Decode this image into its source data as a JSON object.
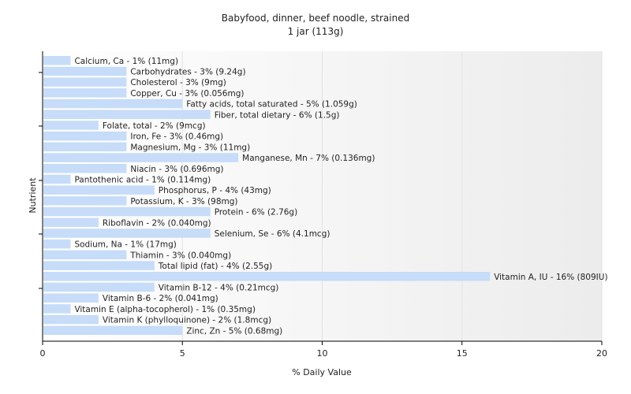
{
  "chart_data": {
    "type": "bar",
    "orientation": "horizontal",
    "title": "Babyfood, dinner, beef noodle, strained",
    "subtitle": "1 jar (113g)",
    "xlabel": "% Daily Value",
    "ylabel": "Nutrient",
    "xlim": [
      0,
      20
    ],
    "xticks": [
      0,
      5,
      10,
      15,
      20
    ],
    "grid": true,
    "bar_color": "#c6dcf8",
    "categories": [
      "Calcium, Ca",
      "Carbohydrates",
      "Cholesterol",
      "Copper, Cu",
      "Fatty acids, total saturated",
      "Fiber, total dietary",
      "Folate, total",
      "Iron, Fe",
      "Magnesium, Mg",
      "Manganese, Mn",
      "Niacin",
      "Pantothenic acid",
      "Phosphorus, P",
      "Potassium, K",
      "Protein",
      "Riboflavin",
      "Selenium, Se",
      "Sodium, Na",
      "Thiamin",
      "Total lipid (fat)",
      "Vitamin A, IU",
      "Vitamin B-12",
      "Vitamin B-6",
      "Vitamin E (alpha-tocopherol)",
      "Vitamin K (phylloquinone)",
      "Zinc, Zn"
    ],
    "values": [
      1,
      3,
      3,
      3,
      5,
      6,
      2,
      3,
      3,
      7,
      3,
      1,
      4,
      3,
      6,
      2,
      6,
      1,
      3,
      4,
      16,
      4,
      2,
      1,
      2,
      5
    ],
    "labels": [
      "Calcium, Ca - 1% (11mg)",
      "Carbohydrates - 3% (9.24g)",
      "Cholesterol - 3% (9mg)",
      "Copper, Cu - 3% (0.056mg)",
      "Fatty acids, total saturated - 5% (1.059g)",
      "Fiber, total dietary - 6% (1.5g)",
      "Folate, total - 2% (9mcg)",
      "Iron, Fe - 3% (0.46mg)",
      "Magnesium, Mg - 3% (11mg)",
      "Manganese, Mn - 7% (0.136mg)",
      "Niacin - 3% (0.696mg)",
      "Pantothenic acid - 1% (0.114mg)",
      "Phosphorus, P - 4% (43mg)",
      "Potassium, K - 3% (98mg)",
      "Protein - 6% (2.76g)",
      "Riboflavin - 2% (0.040mg)",
      "Selenium, Se - 6% (4.1mcg)",
      "Sodium, Na - 1% (17mg)",
      "Thiamin - 3% (0.040mg)",
      "Total lipid (fat) - 4% (2.55g)",
      "Vitamin A, IU - 16% (809IU)",
      "Vitamin B-12 - 4% (0.21mcg)",
      "Vitamin B-6 - 2% (0.041mg)",
      "Vitamin E (alpha-tocopherol) - 1% (0.35mg)",
      "Vitamin K (phylloquinone) - 2% (1.8mcg)",
      "Zinc, Zn - 5% (0.68mg)"
    ]
  }
}
